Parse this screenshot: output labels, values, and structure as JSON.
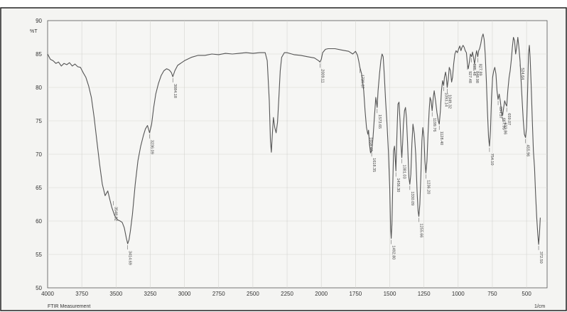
{
  "chart_data": {
    "type": "line",
    "title": "",
    "ylabel": "%T",
    "xunit": "1/cm",
    "footer": "FTIR Measurement",
    "xlim": [
      4000,
      350
    ],
    "ylim": [
      50,
      90
    ],
    "x_reversed": true,
    "grid": true,
    "x_ticks": [
      4000,
      3750,
      3500,
      3250,
      3000,
      2750,
      2500,
      2250,
      2000,
      1750,
      1500,
      1250,
      1000,
      750,
      500
    ],
    "x_tick_labels": [
      "4000",
      "3750",
      "3500",
      "3250",
      "3000",
      "2750",
      "2500",
      "2250",
      "2000",
      "1750",
      "1500",
      "1250",
      "1000",
      "750",
      "500"
    ],
    "y_ticks": [
      50,
      55,
      60,
      65,
      70,
      75,
      80,
      85,
      90
    ],
    "y_tick_labels": [
      "50",
      "55",
      "60",
      "65",
      "70",
      "75",
      "80",
      "85",
      "90"
    ],
    "series": [
      {
        "color": "#555555",
        "points": [
          [
            4000,
            85.0
          ],
          [
            3980,
            84.2
          ],
          [
            3960,
            84.0
          ],
          [
            3940,
            83.6
          ],
          [
            3920,
            83.8
          ],
          [
            3900,
            83.2
          ],
          [
            3880,
            83.6
          ],
          [
            3860,
            83.4
          ],
          [
            3840,
            83.7
          ],
          [
            3820,
            83.2
          ],
          [
            3800,
            83.5
          ],
          [
            3780,
            83.1
          ],
          [
            3760,
            83.0
          ],
          [
            3740,
            82.2
          ],
          [
            3720,
            81.5
          ],
          [
            3700,
            80.2
          ],
          [
            3680,
            78.5
          ],
          [
            3660,
            75.5
          ],
          [
            3640,
            72.0
          ],
          [
            3620,
            68.5
          ],
          [
            3600,
            65.5
          ],
          [
            3580,
            63.8
          ],
          [
            3560,
            64.5
          ],
          [
            3545,
            63.2
          ],
          [
            3530,
            62.0
          ],
          [
            3510,
            60.8
          ],
          [
            3490,
            60.2
          ],
          [
            3470,
            60.0
          ],
          [
            3455,
            59.8
          ],
          [
            3440,
            59.0
          ],
          [
            3425,
            57.5
          ],
          [
            3415,
            56.6
          ],
          [
            3405,
            57.2
          ],
          [
            3395,
            58.5
          ],
          [
            3380,
            61.0
          ],
          [
            3360,
            65.5
          ],
          [
            3340,
            69.0
          ],
          [
            3320,
            71.2
          ],
          [
            3300,
            72.8
          ],
          [
            3285,
            73.8
          ],
          [
            3270,
            74.3
          ],
          [
            3255,
            73.2
          ],
          [
            3240,
            74.5
          ],
          [
            3225,
            77.0
          ],
          [
            3210,
            79.0
          ],
          [
            3190,
            80.6
          ],
          [
            3170,
            81.8
          ],
          [
            3150,
            82.5
          ],
          [
            3130,
            82.8
          ],
          [
            3110,
            82.6
          ],
          [
            3095,
            82.2
          ],
          [
            3085,
            81.6
          ],
          [
            3070,
            82.5
          ],
          [
            3050,
            83.3
          ],
          [
            3000,
            84.0
          ],
          [
            2950,
            84.5
          ],
          [
            2900,
            84.8
          ],
          [
            2850,
            84.8
          ],
          [
            2800,
            85.0
          ],
          [
            2750,
            84.9
          ],
          [
            2700,
            85.1
          ],
          [
            2650,
            85.0
          ],
          [
            2600,
            85.1
          ],
          [
            2550,
            85.2
          ],
          [
            2500,
            85.1
          ],
          [
            2450,
            85.2
          ],
          [
            2410,
            85.2
          ],
          [
            2395,
            84.0
          ],
          [
            2380,
            78.0
          ],
          [
            2372,
            72.0
          ],
          [
            2365,
            70.3
          ],
          [
            2358,
            73.0
          ],
          [
            2350,
            75.5
          ],
          [
            2340,
            74.0
          ],
          [
            2330,
            73.2
          ],
          [
            2320,
            74.8
          ],
          [
            2310,
            78.5
          ],
          [
            2300,
            82.5
          ],
          [
            2290,
            84.5
          ],
          [
            2270,
            85.2
          ],
          [
            2250,
            85.2
          ],
          [
            2200,
            84.9
          ],
          [
            2150,
            84.8
          ],
          [
            2100,
            84.6
          ],
          [
            2050,
            84.4
          ],
          [
            2020,
            84.0
          ],
          [
            2010,
            83.8
          ],
          [
            2000,
            84.2
          ],
          [
            1990,
            85.2
          ],
          [
            1970,
            85.7
          ],
          [
            1950,
            85.8
          ],
          [
            1900,
            85.8
          ],
          [
            1850,
            85.6
          ],
          [
            1800,
            85.4
          ],
          [
            1770,
            85.0
          ],
          [
            1750,
            85.4
          ],
          [
            1735,
            84.8
          ],
          [
            1725,
            83.8
          ],
          [
            1718,
            83.0
          ],
          [
            1705,
            82.0
          ],
          [
            1690,
            79.5
          ],
          [
            1680,
            76.5
          ],
          [
            1670,
            74.0
          ],
          [
            1660,
            73.0
          ],
          [
            1655,
            73.6
          ],
          [
            1648,
            71.5
          ],
          [
            1640,
            70.2
          ],
          [
            1632,
            70.5
          ],
          [
            1622,
            72.5
          ],
          [
            1612,
            75.5
          ],
          [
            1602,
            78.5
          ],
          [
            1592,
            77.0
          ],
          [
            1585,
            79.5
          ],
          [
            1575,
            82.0
          ],
          [
            1565,
            84.0
          ],
          [
            1556,
            85.0
          ],
          [
            1548,
            84.6
          ],
          [
            1540,
            82.0
          ],
          [
            1530,
            78.0
          ],
          [
            1520,
            74.5
          ],
          [
            1510,
            70.5
          ],
          [
            1500,
            65.0
          ],
          [
            1494,
            59.0
          ],
          [
            1489,
            57.4
          ],
          [
            1484,
            59.5
          ],
          [
            1478,
            65.0
          ],
          [
            1472,
            70.5
          ],
          [
            1465,
            71.2
          ],
          [
            1460,
            69.5
          ],
          [
            1455,
            67.5
          ],
          [
            1450,
            71.0
          ],
          [
            1445,
            74.5
          ],
          [
            1440,
            77.5
          ],
          [
            1432,
            77.8
          ],
          [
            1425,
            75.0
          ],
          [
            1418,
            71.5
          ],
          [
            1412,
            69.5
          ],
          [
            1406,
            71.5
          ],
          [
            1400,
            74.5
          ],
          [
            1392,
            76.5
          ],
          [
            1385,
            77.0
          ],
          [
            1378,
            75.5
          ],
          [
            1370,
            72.0
          ],
          [
            1360,
            66.5
          ],
          [
            1353,
            65.5
          ],
          [
            1346,
            67.0
          ],
          [
            1338,
            71.5
          ],
          [
            1330,
            74.5
          ],
          [
            1320,
            73.0
          ],
          [
            1310,
            70.0
          ],
          [
            1300,
            64.5
          ],
          [
            1293,
            61.5
          ],
          [
            1287,
            60.7
          ],
          [
            1280,
            62.5
          ],
          [
            1272,
            67.0
          ],
          [
            1265,
            72.0
          ],
          [
            1258,
            74.0
          ],
          [
            1250,
            72.5
          ],
          [
            1243,
            69.0
          ],
          [
            1236,
            67.2
          ],
          [
            1228,
            69.0
          ],
          [
            1220,
            73.0
          ],
          [
            1212,
            76.5
          ],
          [
            1205,
            78.5
          ],
          [
            1198,
            78.0
          ],
          [
            1190,
            76.5
          ],
          [
            1182,
            78.5
          ],
          [
            1175,
            79.5
          ],
          [
            1165,
            78.0
          ],
          [
            1155,
            76.2
          ],
          [
            1145,
            75.0
          ],
          [
            1138,
            74.5
          ],
          [
            1130,
            76.5
          ],
          [
            1122,
            79.5
          ],
          [
            1114,
            81.0
          ],
          [
            1106,
            80.3
          ],
          [
            1100,
            81.5
          ],
          [
            1092,
            82.3
          ],
          [
            1086,
            81.5
          ],
          [
            1080,
            80.0
          ],
          [
            1072,
            81.2
          ],
          [
            1065,
            83.0
          ],
          [
            1056,
            82.5
          ],
          [
            1048,
            80.8
          ],
          [
            1041,
            81.5
          ],
          [
            1033,
            83.5
          ],
          [
            1024,
            85.0
          ],
          [
            1015,
            85.5
          ],
          [
            1005,
            85.2
          ],
          [
            996,
            85.8
          ],
          [
            988,
            86.2
          ],
          [
            980,
            85.5
          ],
          [
            972,
            86.0
          ],
          [
            964,
            86.3
          ],
          [
            956,
            86.0
          ],
          [
            948,
            85.5
          ],
          [
            940,
            85.2
          ],
          [
            932,
            83.5
          ],
          [
            926,
            82.8
          ],
          [
            918,
            83.8
          ],
          [
            910,
            85.0
          ],
          [
            902,
            84.6
          ],
          [
            895,
            85.3
          ],
          [
            888,
            84.5
          ],
          [
            880,
            83.5
          ],
          [
            872,
            84.8
          ],
          [
            865,
            85.5
          ],
          [
            857,
            84.6
          ],
          [
            850,
            85.5
          ],
          [
            843,
            85.8
          ],
          [
            835,
            86.5
          ],
          [
            826,
            87.5
          ],
          [
            818,
            88.0
          ],
          [
            810,
            87.2
          ],
          [
            802,
            85.0
          ],
          [
            794,
            81.0
          ],
          [
            786,
            76.5
          ],
          [
            778,
            72.5
          ],
          [
            771,
            71.2
          ],
          [
            764,
            73.5
          ],
          [
            756,
            78.5
          ],
          [
            748,
            81.5
          ],
          [
            740,
            82.5
          ],
          [
            732,
            83.0
          ],
          [
            724,
            82.0
          ],
          [
            716,
            79.5
          ],
          [
            708,
            78.2
          ],
          [
            700,
            79.0
          ],
          [
            692,
            78.0
          ],
          [
            684,
            76.5
          ],
          [
            675,
            75.8
          ],
          [
            667,
            77.0
          ],
          [
            660,
            78.0
          ],
          [
            652,
            77.5
          ],
          [
            645,
            77.2
          ],
          [
            637,
            79.5
          ],
          [
            628,
            81.5
          ],
          [
            620,
            82.5
          ],
          [
            612,
            84.0
          ],
          [
            604,
            86.0
          ],
          [
            596,
            87.5
          ],
          [
            588,
            87.0
          ],
          [
            580,
            85.0
          ],
          [
            572,
            86.0
          ],
          [
            564,
            87.5
          ],
          [
            556,
            86.0
          ],
          [
            548,
            84.0
          ],
          [
            540,
            81.0
          ],
          [
            532,
            78.0
          ],
          [
            524,
            75.0
          ],
          [
            516,
            73.0
          ],
          [
            508,
            72.5
          ],
          [
            500,
            74.0
          ],
          [
            492,
            80.0
          ],
          [
            486,
            85.0
          ],
          [
            480,
            86.3
          ],
          [
            474,
            84.5
          ],
          [
            466,
            80.0
          ],
          [
            458,
            75.0
          ],
          [
            450,
            70.5
          ],
          [
            442,
            68.0
          ],
          [
            434,
            64.0
          ],
          [
            426,
            60.5
          ],
          [
            418,
            58.0
          ],
          [
            412,
            56.5
          ],
          [
            406,
            58.0
          ],
          [
            400,
            60.5
          ]
        ]
      }
    ],
    "peak_labels": [
      {
        "x": 3520,
        "y": 63.2,
        "text": "3548.02"
      },
      {
        "x": 3415,
        "y": 56.6,
        "text": "3414.69"
      },
      {
        "x": 3255,
        "y": 73.2,
        "text": "3236.09"
      },
      {
        "x": 3085,
        "y": 81.6,
        "text": "3084.18"
      },
      {
        "x": 2010,
        "y": 83.8,
        "text": "2009.11"
      },
      {
        "x": 1718,
        "y": 83.0,
        "text": "1739.87"
      },
      {
        "x": 1655,
        "y": 73.6,
        "text": "1658.48"
      },
      {
        "x": 1632,
        "y": 70.5,
        "text": "1618.35"
      },
      {
        "x": 1592,
        "y": 77.0,
        "text": "1573.65"
      },
      {
        "x": 1489,
        "y": 57.4,
        "text": "1492.80"
      },
      {
        "x": 1455,
        "y": 67.5,
        "text": "1456.30"
      },
      {
        "x": 1412,
        "y": 69.5,
        "text": "1381.03"
      },
      {
        "x": 1353,
        "y": 65.5,
        "text": "1330.09"
      },
      {
        "x": 1287,
        "y": 60.7,
        "text": "1255.66"
      },
      {
        "x": 1236,
        "y": 67.2,
        "text": "1236.20"
      },
      {
        "x": 1190,
        "y": 76.5,
        "text": "1199.76"
      },
      {
        "x": 1138,
        "y": 74.5,
        "text": "1128.40"
      },
      {
        "x": 1106,
        "y": 80.3,
        "text": "1093.14"
      },
      {
        "x": 1080,
        "y": 80.0,
        "text": "1049.32"
      },
      {
        "x": 932,
        "y": 83.5,
        "text": "927.48"
      },
      {
        "x": 902,
        "y": 84.6,
        "text": "885.48"
      },
      {
        "x": 880,
        "y": 83.5,
        "text": "848.98"
      },
      {
        "x": 857,
        "y": 84.6,
        "text": "827.89"
      },
      {
        "x": 771,
        "y": 71.2,
        "text": "754.10"
      },
      {
        "x": 708,
        "y": 78.2,
        "text": "694.37"
      },
      {
        "x": 684,
        "y": 76.5,
        "text": "667.95"
      },
      {
        "x": 675,
        "y": 75.8,
        "text": "632.86"
      },
      {
        "x": 645,
        "y": 77.2,
        "text": "659.07"
      },
      {
        "x": 548,
        "y": 84.0,
        "text": "524.64"
      },
      {
        "x": 508,
        "y": 72.5,
        "text": "455.96"
      },
      {
        "x": 412,
        "y": 56.5,
        "text": "372.50"
      }
    ]
  }
}
